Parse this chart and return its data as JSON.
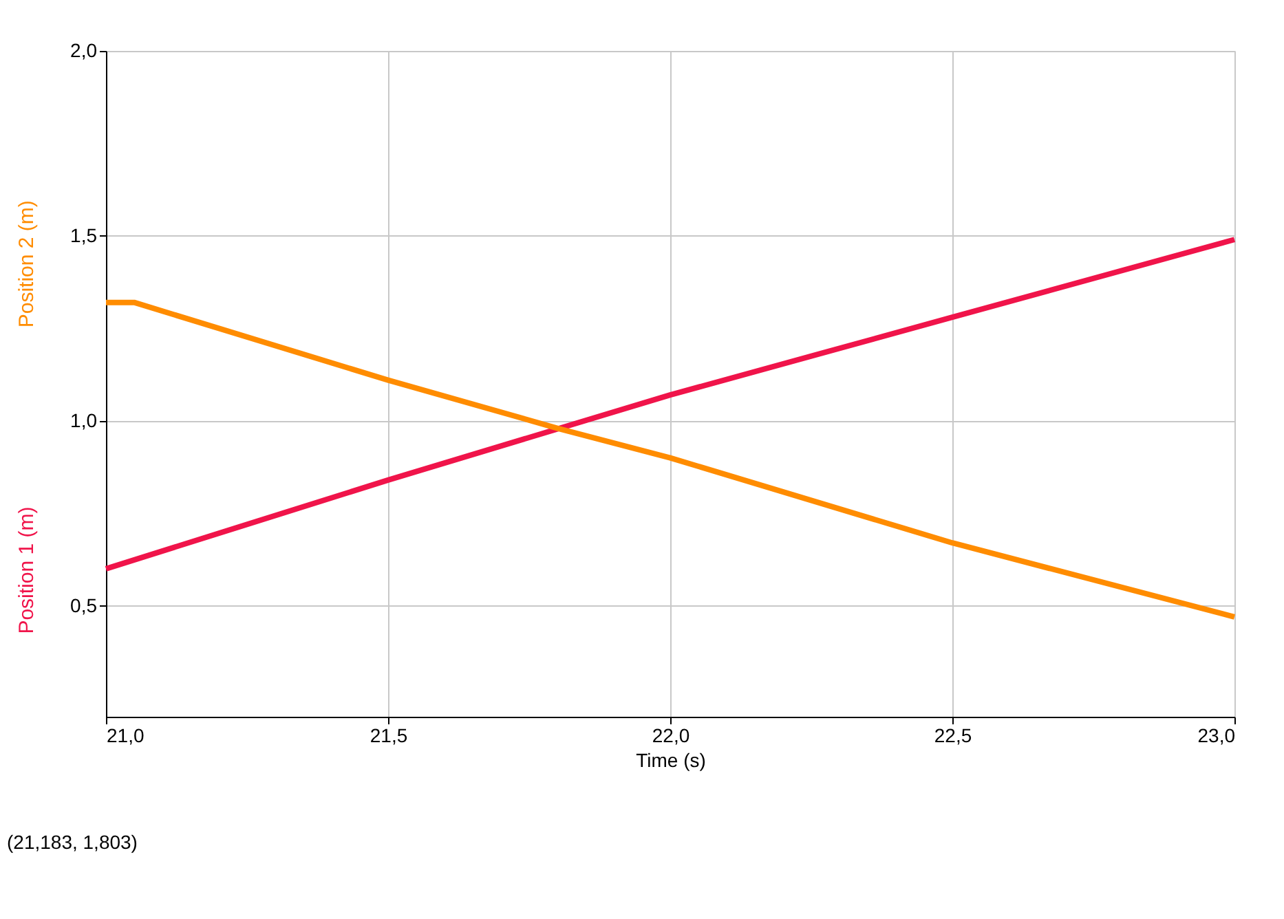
{
  "chart_data": {
    "type": "line",
    "xlabel": "Time (s)",
    "x": [
      21.0,
      21.05,
      21.5,
      21.8,
      22.0,
      22.5,
      23.0
    ],
    "series": [
      {
        "name": "Position 1 (m)",
        "color": "#f0144a",
        "x": [
          21.0,
          21.5,
          22.0,
          22.5,
          23.0
        ],
        "values": [
          0.6,
          0.84,
          1.07,
          1.28,
          1.49
        ]
      },
      {
        "name": "Position 2 (m)",
        "color": "#ff8c00",
        "values": [
          1.32,
          1.32,
          1.11,
          0.98,
          0.9,
          0.67,
          0.47
        ]
      }
    ],
    "xlim": [
      21.0,
      23.0
    ],
    "ylim": [
      0.2,
      2.0
    ],
    "xticks": [
      {
        "value": 21.0,
        "label": "21,0"
      },
      {
        "value": 21.5,
        "label": "21,5"
      },
      {
        "value": 22.0,
        "label": "22,0"
      },
      {
        "value": 22.5,
        "label": "22,5"
      },
      {
        "value": 23.0,
        "label": "23,0"
      }
    ],
    "yticks": [
      {
        "value": 0.5,
        "label": "0,5"
      },
      {
        "value": 1.0,
        "label": "1,0"
      },
      {
        "value": 1.5,
        "label": "1,5"
      },
      {
        "value": 2.0,
        "label": "2,0"
      }
    ],
    "grid": true,
    "legend": false,
    "marker": "none",
    "line_style": "solid",
    "annotations": [
      "(21,183, 1,803)"
    ]
  }
}
